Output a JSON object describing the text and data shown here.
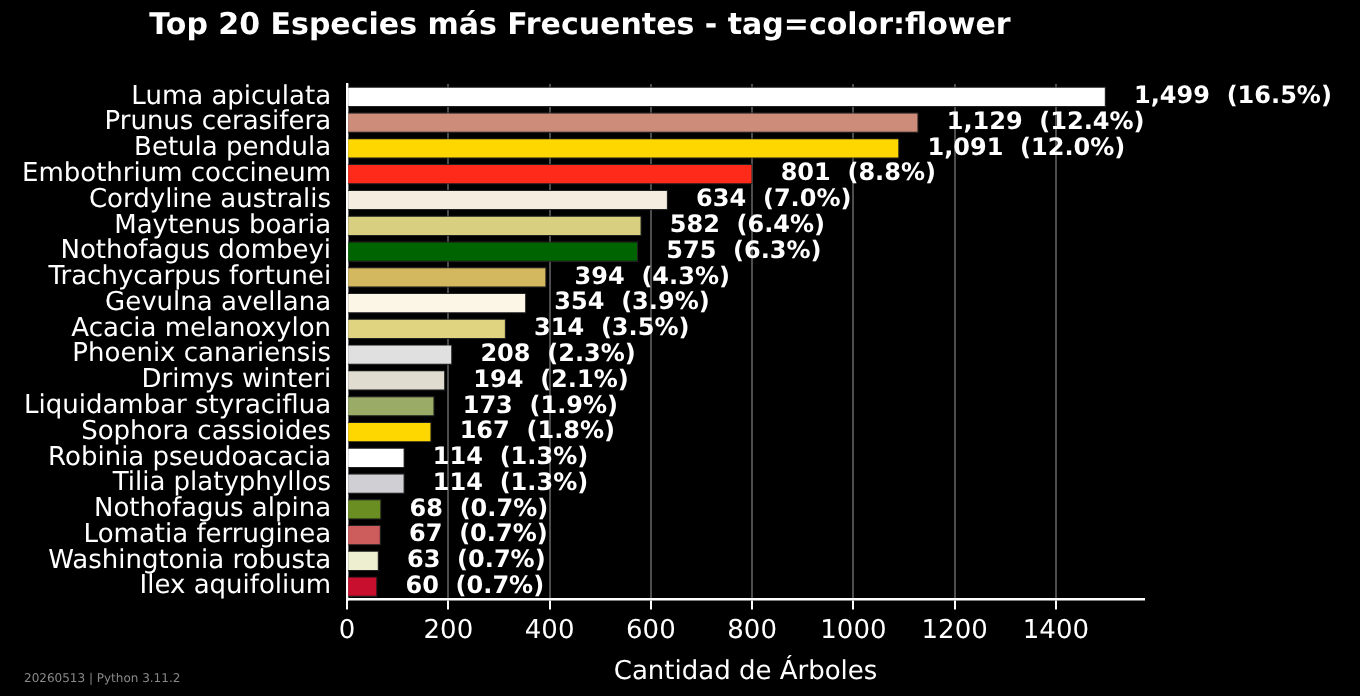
{
  "chart_data": {
    "type": "bar",
    "orientation": "horizontal",
    "title": "Top 20 Especies más Frecuentes - tag=color:flower",
    "xlabel": "Cantidad de Árboles",
    "categories": [
      "Luma apiculata",
      "Prunus cerasifera",
      "Betula pendula",
      "Embothrium coccineum",
      "Cordyline australis",
      "Maytenus boaria",
      "Nothofagus dombeyi",
      "Trachycarpus fortunei",
      "Gevulna avellana",
      "Acacia melanoxylon",
      "Phoenix canariensis",
      "Drimys winteri",
      "Liquidambar styraciflua",
      "Sophora cassioides",
      "Robinia pseudoacacia",
      "Tilia platyphyllos",
      "Nothofagus alpina",
      "Lomatia ferruginea",
      "Washingtonia robusta",
      "Ilex aquifolium"
    ],
    "values": [
      1499,
      1129,
      1091,
      801,
      634,
      582,
      575,
      394,
      354,
      314,
      208,
      194,
      173,
      167,
      114,
      114,
      68,
      67,
      63,
      60
    ],
    "value_labels": [
      "1,499  (16.5%)",
      "1,129  (12.4%)",
      "1,091  (12.0%)",
      "801  (8.8%)",
      "634  (7.0%)",
      "582  (6.4%)",
      "575  (6.3%)",
      "394  (4.3%)",
      "354  (3.9%)",
      "314  (3.5%)",
      "208  (2.3%)",
      "194  (2.1%)",
      "173  (1.9%)",
      "167  (1.8%)",
      "114  (1.3%)",
      "114  (1.3%)",
      "68  (0.7%)",
      "67  (0.7%)",
      "63  (0.7%)",
      "60  (0.7%)"
    ],
    "colors": [
      "#ffffff",
      "#cd8c7a",
      "#ffd700",
      "#ff2a1a",
      "#f5ede0",
      "#d8cf80",
      "#006400",
      "#d4b860",
      "#fbf6e6",
      "#e0d480",
      "#e0e0e0",
      "#e0dcd0",
      "#9aab68",
      "#ffd700",
      "#ffffff",
      "#d0d0d4",
      "#6b8e23",
      "#cd5c5c",
      "#eeeed0",
      "#c8102e"
    ],
    "xlim": [
      0,
      1574
    ],
    "xticks": [
      0,
      200,
      400,
      600,
      800,
      1000,
      1200,
      1400
    ],
    "grid": "x",
    "annotations": [
      "20260513 | Python 3.11.2"
    ]
  }
}
